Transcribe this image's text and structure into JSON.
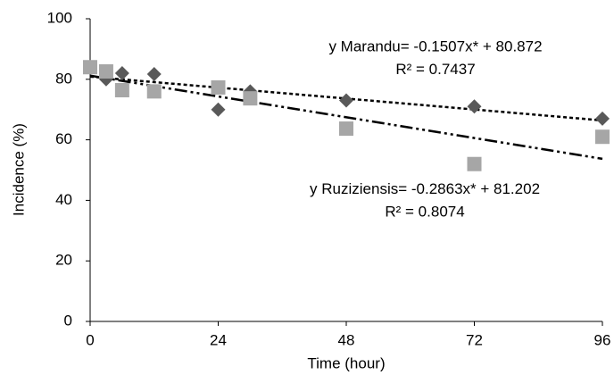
{
  "chart_data": {
    "type": "scatter",
    "x_label": "Time (hour)",
    "y_label": "Incidence  (%)",
    "xlim": [
      0,
      96
    ],
    "xticks": [
      0,
      24,
      48,
      72,
      96
    ],
    "ylim": [
      0,
      100
    ],
    "yticks": [
      0,
      20,
      40,
      60,
      80,
      100
    ],
    "series": [
      {
        "marker": "diamond",
        "color": "#595959",
        "x": [
          0,
          3,
          6,
          12,
          24,
          30,
          48,
          72,
          96
        ],
        "values": [
          84,
          80,
          82,
          81.7,
          70,
          76,
          73,
          71,
          67
        ]
      },
      {
        "marker": "square",
        "color": "#a6a6a6",
        "x": [
          0,
          3,
          6,
          12,
          24,
          30,
          48,
          72,
          96
        ],
        "values": [
          84,
          82.6,
          76.4,
          76,
          77.3,
          73.7,
          63.7,
          52,
          61
        ]
      }
    ],
    "trendlines": [
      {
        "dash": "4,3",
        "color": "#000000",
        "x": [
          0,
          96
        ],
        "values": [
          80.872,
          66.405
        ]
      },
      {
        "dash": "14,4,3,4,3,4",
        "color": "#000000",
        "x": [
          0,
          96
        ],
        "values": [
          81.202,
          53.717
        ]
      }
    ],
    "annotations": [
      {
        "text": "y Marandu= -0.1507x* + 80.872",
        "x": 48,
        "y": 90.5
      },
      {
        "text": "R² = 0.7437",
        "x": 48,
        "y": 83
      },
      {
        "text": "y Ruziziensis= -0.2863x* + 81.202",
        "x": 46,
        "y": 43.5
      },
      {
        "text": "R² = 0.8074",
        "x": 46,
        "y": 36
      }
    ]
  }
}
